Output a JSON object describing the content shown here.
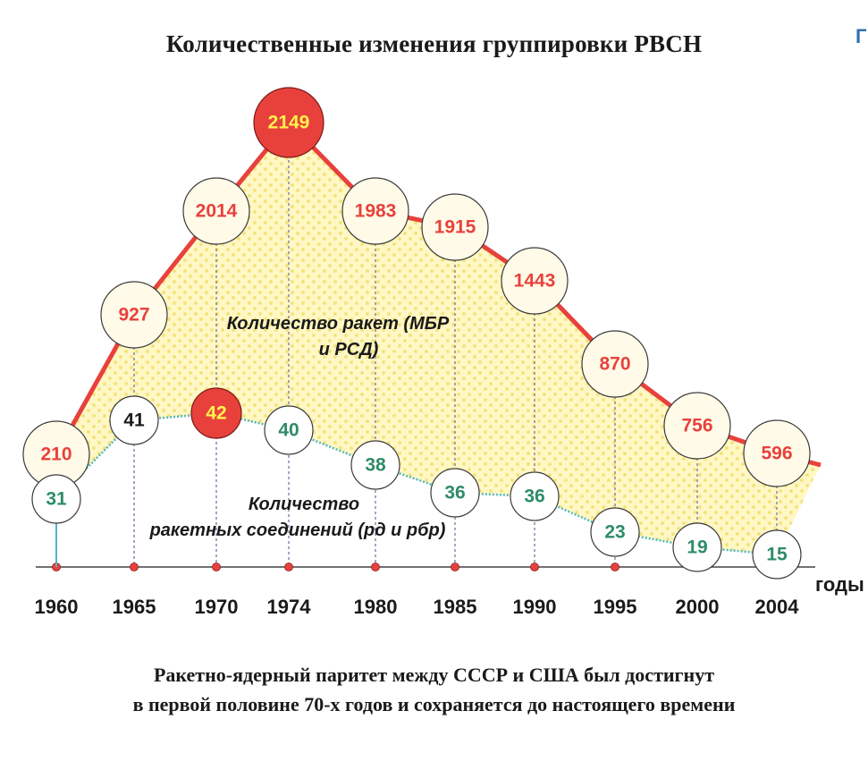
{
  "title": "Количественные изменения группировки РВСН",
  "corner_mark": "Г",
  "caption": {
    "line1": "Ракетно-ядерный паритет между СССР и США был достигнут",
    "line2": "в первой половине 70-х годов и сохраняется до настоящего времени"
  },
  "colors": {
    "missiles_line": "#e8413c",
    "missiles_text": "#e8413c",
    "units_line": "#4fb7c2",
    "units_text": "#2e8c67",
    "highlight_fill": "#e8413c",
    "highlight_text": "#fff34d",
    "area_fill": "#fff6b8",
    "circle_fill": "#fffbe8",
    "guide_line": "#6a6aa0"
  },
  "chart_data": {
    "type": "line",
    "x": [
      "1960",
      "1965",
      "1970",
      "1974",
      "1980",
      "1985",
      "1990",
      "1995",
      "2000",
      "2004"
    ],
    "xlabel": "годы",
    "series": [
      {
        "name": "Количество ракет (МБР и РСД)",
        "values": [
          210,
          927,
          2014,
          2149,
          1983,
          1915,
          1443,
          870,
          756,
          596
        ],
        "highlight": "2149"
      },
      {
        "name": "Количество ракетных соединений (рд и рбр)",
        "values": [
          31,
          41,
          42,
          40,
          38,
          36,
          36,
          23,
          19,
          15
        ],
        "highlight": "42"
      }
    ],
    "series_labels": {
      "missiles": [
        "Количество ракет (МБР",
        "и РСД)"
      ],
      "units": [
        "Количество",
        "ракетных соединений (рд и рбр)"
      ]
    }
  }
}
